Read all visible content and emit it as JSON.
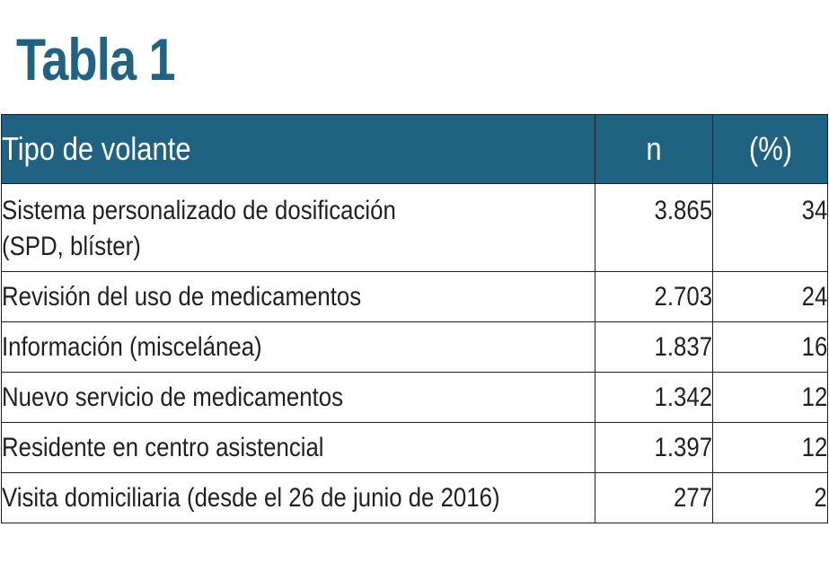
{
  "title": "Tabla 1",
  "colors": {
    "accent": "#1f6281",
    "header_text": "#ffffff",
    "text": "#231f20",
    "border": "#231f20"
  },
  "table": {
    "headers": [
      "Tipo de volante",
      "n",
      "(%)"
    ],
    "rows": [
      {
        "label": "Sistema personalizado de dosificación\n(SPD, blíster)",
        "n": "3.865",
        "pct": "34"
      },
      {
        "label": "Revisión del uso de medicamentos",
        "n": "2.703",
        "pct": "24"
      },
      {
        "label": "Información (miscelánea)",
        "n": "1.837",
        "pct": "16"
      },
      {
        "label": "Nuevo servicio de medicamentos",
        "n": "1.342",
        "pct": "12"
      },
      {
        "label": "Residente en centro asistencial",
        "n": "1.397",
        "pct": "12"
      },
      {
        "label": "Visita domiciliaria (desde el 26 de junio de 2016)",
        "n": "277",
        "pct": "2"
      }
    ]
  }
}
